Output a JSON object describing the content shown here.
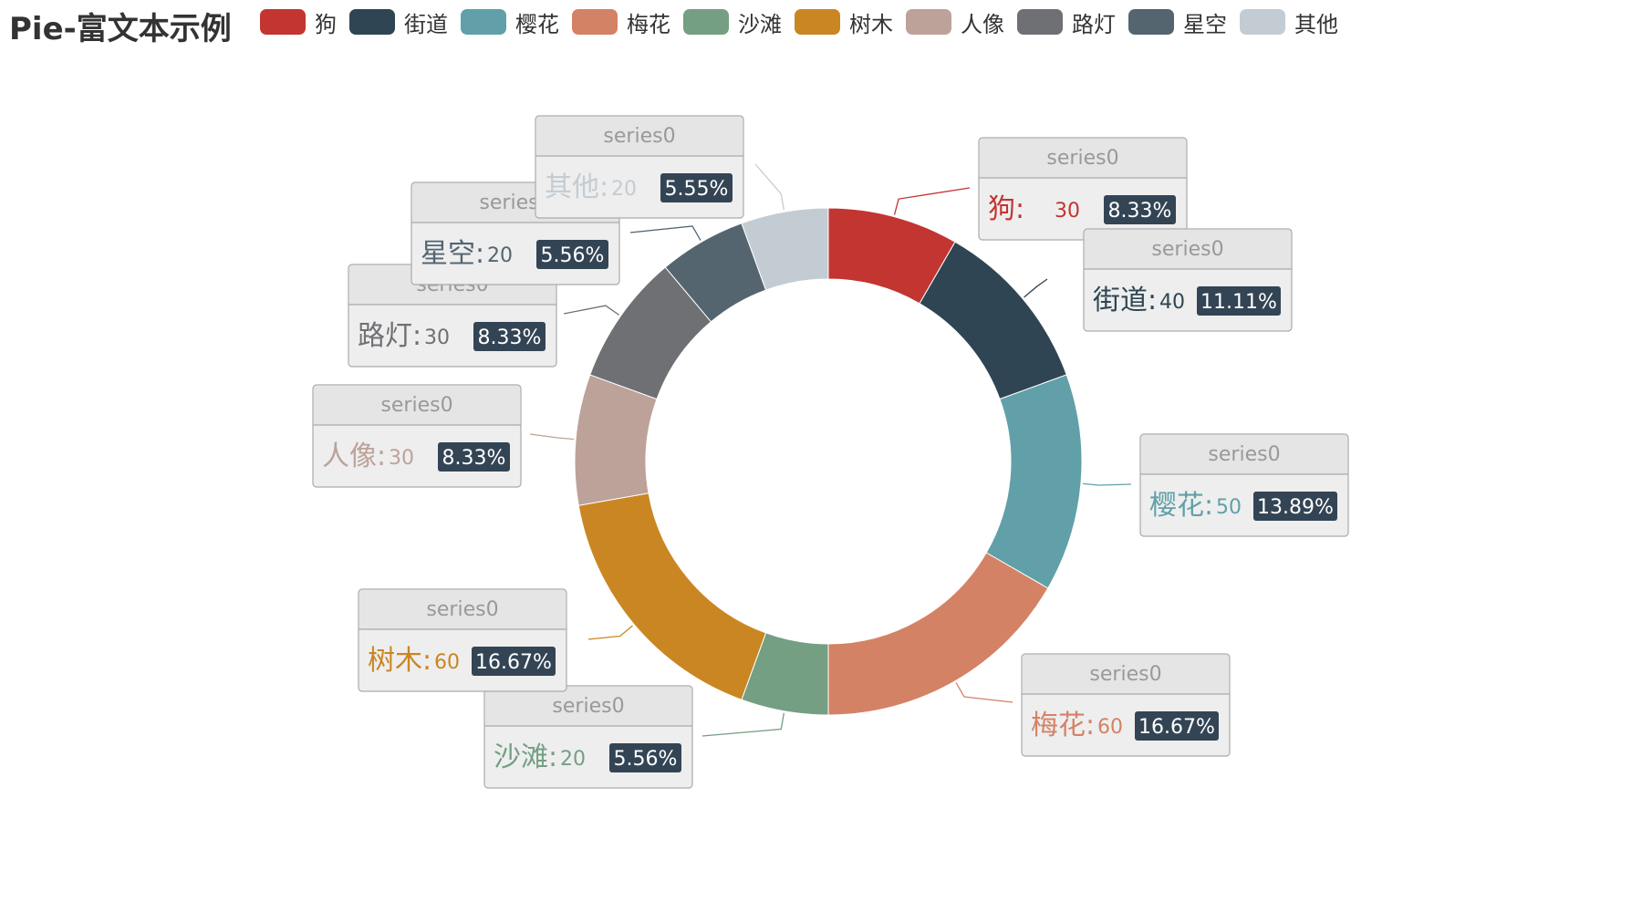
{
  "chart_data": {
    "type": "pie",
    "variant": "donut",
    "title": "Pie-富文本示例",
    "series_name": "series0",
    "legend_position": "top",
    "categories": [
      "狗",
      "街道",
      "樱花",
      "梅花",
      "沙滩",
      "树木",
      "人像",
      "路灯",
      "星空",
      "其他"
    ],
    "values": [
      30,
      40,
      50,
      60,
      20,
      60,
      30,
      30,
      20,
      20
    ],
    "percent_labels": [
      "8.33%",
      "11.11%",
      "13.89%",
      "16.67%",
      "5.56%",
      "16.67%",
      "8.33%",
      "8.33%",
      "5.56%",
      "5.55%"
    ],
    "colors": [
      "#c23531",
      "#2f4554",
      "#61a0a8",
      "#d48265",
      "#749f83",
      "#ca8622",
      "#bda29a",
      "#6e7074",
      "#546570",
      "#c4ccd3"
    ],
    "label_style": {
      "header_bg": "#e5e5e5",
      "box_bg": "#eeeeee",
      "border": "#aaaaaa",
      "percent_badge_bg": "#334455",
      "header_text_color": "#999999"
    }
  }
}
